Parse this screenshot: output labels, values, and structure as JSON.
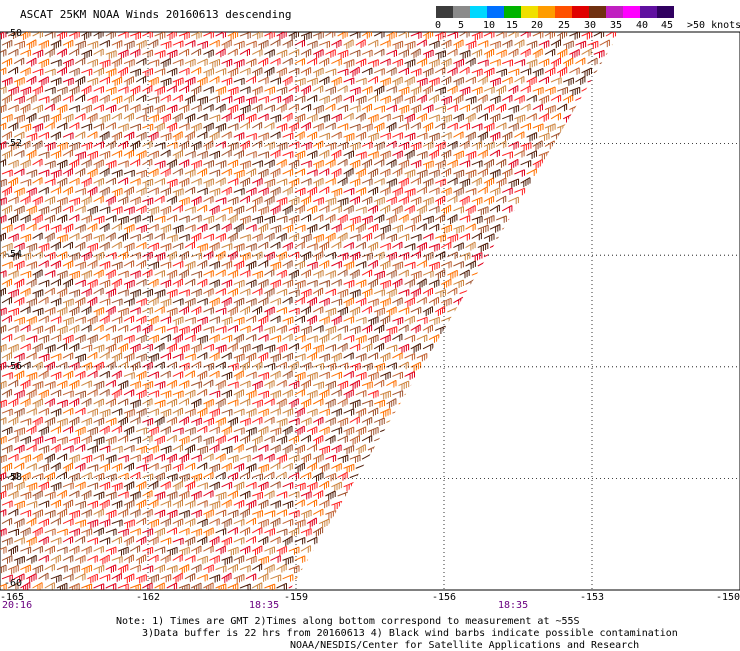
{
  "title": "ASCAT 25KM NOAA Winds 20160613 descending",
  "legend": {
    "ticks": [
      "0",
      "5",
      "10",
      "15",
      "20",
      "25",
      "30",
      "35",
      "40",
      "45"
    ],
    "units": ">50 knots",
    "colors": [
      "#3c3c3c",
      "#8a8a8a",
      "#00d8ff",
      "#0070ff",
      "#00b400",
      "#f0e000",
      "#ff9c00",
      "#ff5000",
      "#e00000",
      "#703010",
      "#c020c0",
      "#ff00ff",
      "#6010a0",
      "#300060"
    ]
  },
  "map": {
    "lon_range": [
      -165,
      -150
    ],
    "lat_range": [
      -60,
      -50
    ],
    "lat_labels": [
      "-50",
      "-52",
      "-54",
      "-56",
      "-58",
      "-60"
    ],
    "lon_labels": [
      "-165",
      "-162",
      "-159",
      "-156",
      "-153",
      "-150"
    ],
    "times": [
      "20:16",
      "18:35",
      "18:35"
    ],
    "barb_colors": [
      "#e0001c",
      "#ff2020",
      "#c06030",
      "#a0522d",
      "#ff7000",
      "#cd853f",
      "#501e0a"
    ],
    "grid": "dotted"
  },
  "notes": [
    "Note: 1) Times are GMT 2)Times along bottom correspond to measurement at ~55S",
    "3)Data buffer is 22 hrs from 20160613 4) Black wind barbs indicate possible contamination",
    "NOAA/NESDIS/Center for Satellite Applications and Research"
  ]
}
